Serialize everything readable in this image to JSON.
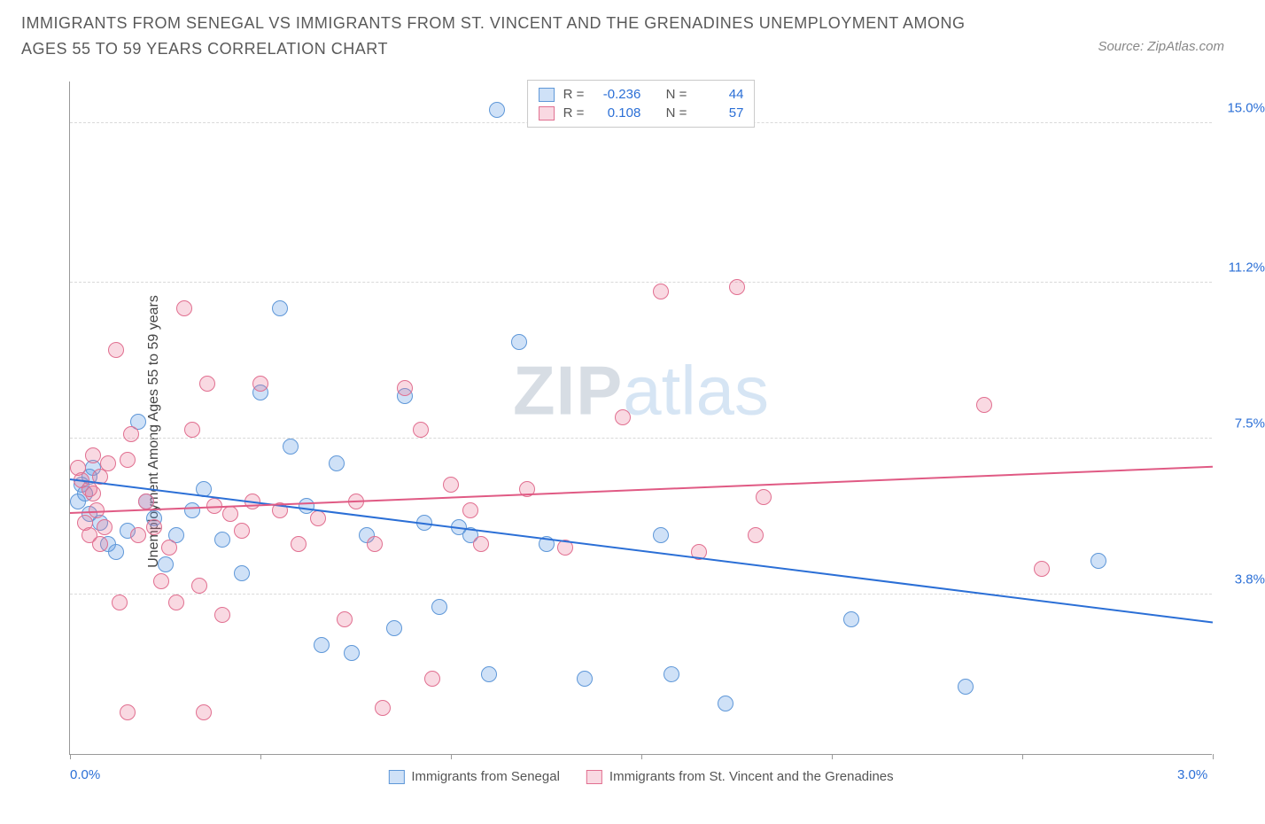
{
  "title": "IMMIGRANTS FROM SENEGAL VS IMMIGRANTS FROM ST. VINCENT AND THE GRENADINES UNEMPLOYMENT AMONG AGES 55 TO 59 YEARS CORRELATION CHART",
  "source": "Source: ZipAtlas.com",
  "ylabel": "Unemployment Among Ages 55 to 59 years",
  "watermark_a": "ZIP",
  "watermark_b": "atlas",
  "chart": {
    "type": "scatter",
    "xlim": [
      0.0,
      3.0
    ],
    "ylim": [
      0.0,
      16.0
    ],
    "x_axis_labels": [
      {
        "v": 0.0,
        "t": "0.0%"
      },
      {
        "v": 3.0,
        "t": "3.0%"
      }
    ],
    "x_ticks": [
      0.0,
      0.5,
      1.0,
      1.5,
      2.0,
      2.5,
      3.0
    ],
    "y_ticks": [
      {
        "v": 3.8,
        "t": "3.8%"
      },
      {
        "v": 7.5,
        "t": "7.5%"
      },
      {
        "v": 11.2,
        "t": "11.2%"
      },
      {
        "v": 15.0,
        "t": "15.0%"
      }
    ],
    "gridline_color": "#d9d9d9",
    "background_color": "#ffffff",
    "point_radius": 9,
    "point_stroke_width": 1.5,
    "series": [
      {
        "name": "Immigrants from Senegal",
        "color_fill": "rgba(96,156,230,0.30)",
        "color_stroke": "#5e97d8",
        "line_color": "#2b6fd6",
        "R": "-0.236",
        "N": "44",
        "regression": {
          "x1": 0.0,
          "y1": 6.5,
          "x2": 3.0,
          "y2": 3.1
        },
        "points": [
          [
            0.03,
            6.4
          ],
          [
            0.04,
            6.2
          ],
          [
            0.05,
            5.7
          ],
          [
            0.06,
            6.8
          ],
          [
            0.08,
            5.5
          ],
          [
            0.1,
            5.0
          ],
          [
            0.12,
            4.8
          ],
          [
            0.15,
            5.3
          ],
          [
            0.18,
            7.9
          ],
          [
            0.2,
            6.0
          ],
          [
            0.22,
            5.6
          ],
          [
            0.25,
            4.5
          ],
          [
            0.28,
            5.2
          ],
          [
            0.32,
            5.8
          ],
          [
            0.35,
            6.3
          ],
          [
            0.4,
            5.1
          ],
          [
            0.45,
            4.3
          ],
          [
            0.5,
            8.6
          ],
          [
            0.55,
            10.6
          ],
          [
            0.58,
            7.3
          ],
          [
            0.62,
            5.9
          ],
          [
            0.66,
            2.6
          ],
          [
            0.7,
            6.9
          ],
          [
            0.74,
            2.4
          ],
          [
            0.78,
            5.2
          ],
          [
            0.85,
            3.0
          ],
          [
            0.88,
            8.5
          ],
          [
            0.93,
            5.5
          ],
          [
            0.97,
            3.5
          ],
          [
            1.02,
            5.4
          ],
          [
            1.05,
            5.2
          ],
          [
            1.1,
            1.9
          ],
          [
            1.12,
            15.3
          ],
          [
            1.18,
            9.8
          ],
          [
            1.25,
            5.0
          ],
          [
            1.35,
            1.8
          ],
          [
            1.55,
            5.2
          ],
          [
            1.58,
            1.9
          ],
          [
            1.72,
            1.2
          ],
          [
            2.05,
            3.2
          ],
          [
            2.35,
            1.6
          ],
          [
            2.7,
            4.6
          ],
          [
            0.05,
            6.6
          ],
          [
            0.02,
            6.0
          ]
        ]
      },
      {
        "name": "Immigrants from St. Vincent and the Grenadines",
        "color_fill": "rgba(235,120,150,0.28)",
        "color_stroke": "#e16f90",
        "line_color": "#e05a84",
        "R": "0.108",
        "N": "57",
        "regression": {
          "x1": 0.0,
          "y1": 5.7,
          "x2": 3.0,
          "y2": 6.8
        },
        "points": [
          [
            0.02,
            6.8
          ],
          [
            0.03,
            6.5
          ],
          [
            0.04,
            5.5
          ],
          [
            0.05,
            5.2
          ],
          [
            0.06,
            6.2
          ],
          [
            0.07,
            5.8
          ],
          [
            0.08,
            6.6
          ],
          [
            0.09,
            5.4
          ],
          [
            0.1,
            6.9
          ],
          [
            0.12,
            9.6
          ],
          [
            0.13,
            3.6
          ],
          [
            0.15,
            7.0
          ],
          [
            0.16,
            7.6
          ],
          [
            0.18,
            5.2
          ],
          [
            0.2,
            6.0
          ],
          [
            0.22,
            5.4
          ],
          [
            0.24,
            4.1
          ],
          [
            0.26,
            4.9
          ],
          [
            0.28,
            3.6
          ],
          [
            0.3,
            10.6
          ],
          [
            0.32,
            7.7
          ],
          [
            0.34,
            4.0
          ],
          [
            0.36,
            8.8
          ],
          [
            0.38,
            5.9
          ],
          [
            0.4,
            3.3
          ],
          [
            0.42,
            5.7
          ],
          [
            0.45,
            5.3
          ],
          [
            0.48,
            6.0
          ],
          [
            0.5,
            8.8
          ],
          [
            0.55,
            5.8
          ],
          [
            0.6,
            5.0
          ],
          [
            0.65,
            5.6
          ],
          [
            0.72,
            3.2
          ],
          [
            0.75,
            6.0
          ],
          [
            0.8,
            5.0
          ],
          [
            0.82,
            1.1
          ],
          [
            0.88,
            8.7
          ],
          [
            0.92,
            7.7
          ],
          [
            0.95,
            1.8
          ],
          [
            1.0,
            6.4
          ],
          [
            1.05,
            5.8
          ],
          [
            1.08,
            5.0
          ],
          [
            1.2,
            6.3
          ],
          [
            1.3,
            4.9
          ],
          [
            1.45,
            8.0
          ],
          [
            1.55,
            11.0
          ],
          [
            1.65,
            4.8
          ],
          [
            1.75,
            11.1
          ],
          [
            1.8,
            5.2
          ],
          [
            1.82,
            6.1
          ],
          [
            2.4,
            8.3
          ],
          [
            2.55,
            4.4
          ],
          [
            0.35,
            1.0
          ],
          [
            0.15,
            1.0
          ],
          [
            0.05,
            6.3
          ],
          [
            0.06,
            7.1
          ],
          [
            0.08,
            5.0
          ]
        ]
      }
    ]
  },
  "legend_top": {
    "r_label": "R =",
    "n_label": "N ="
  }
}
